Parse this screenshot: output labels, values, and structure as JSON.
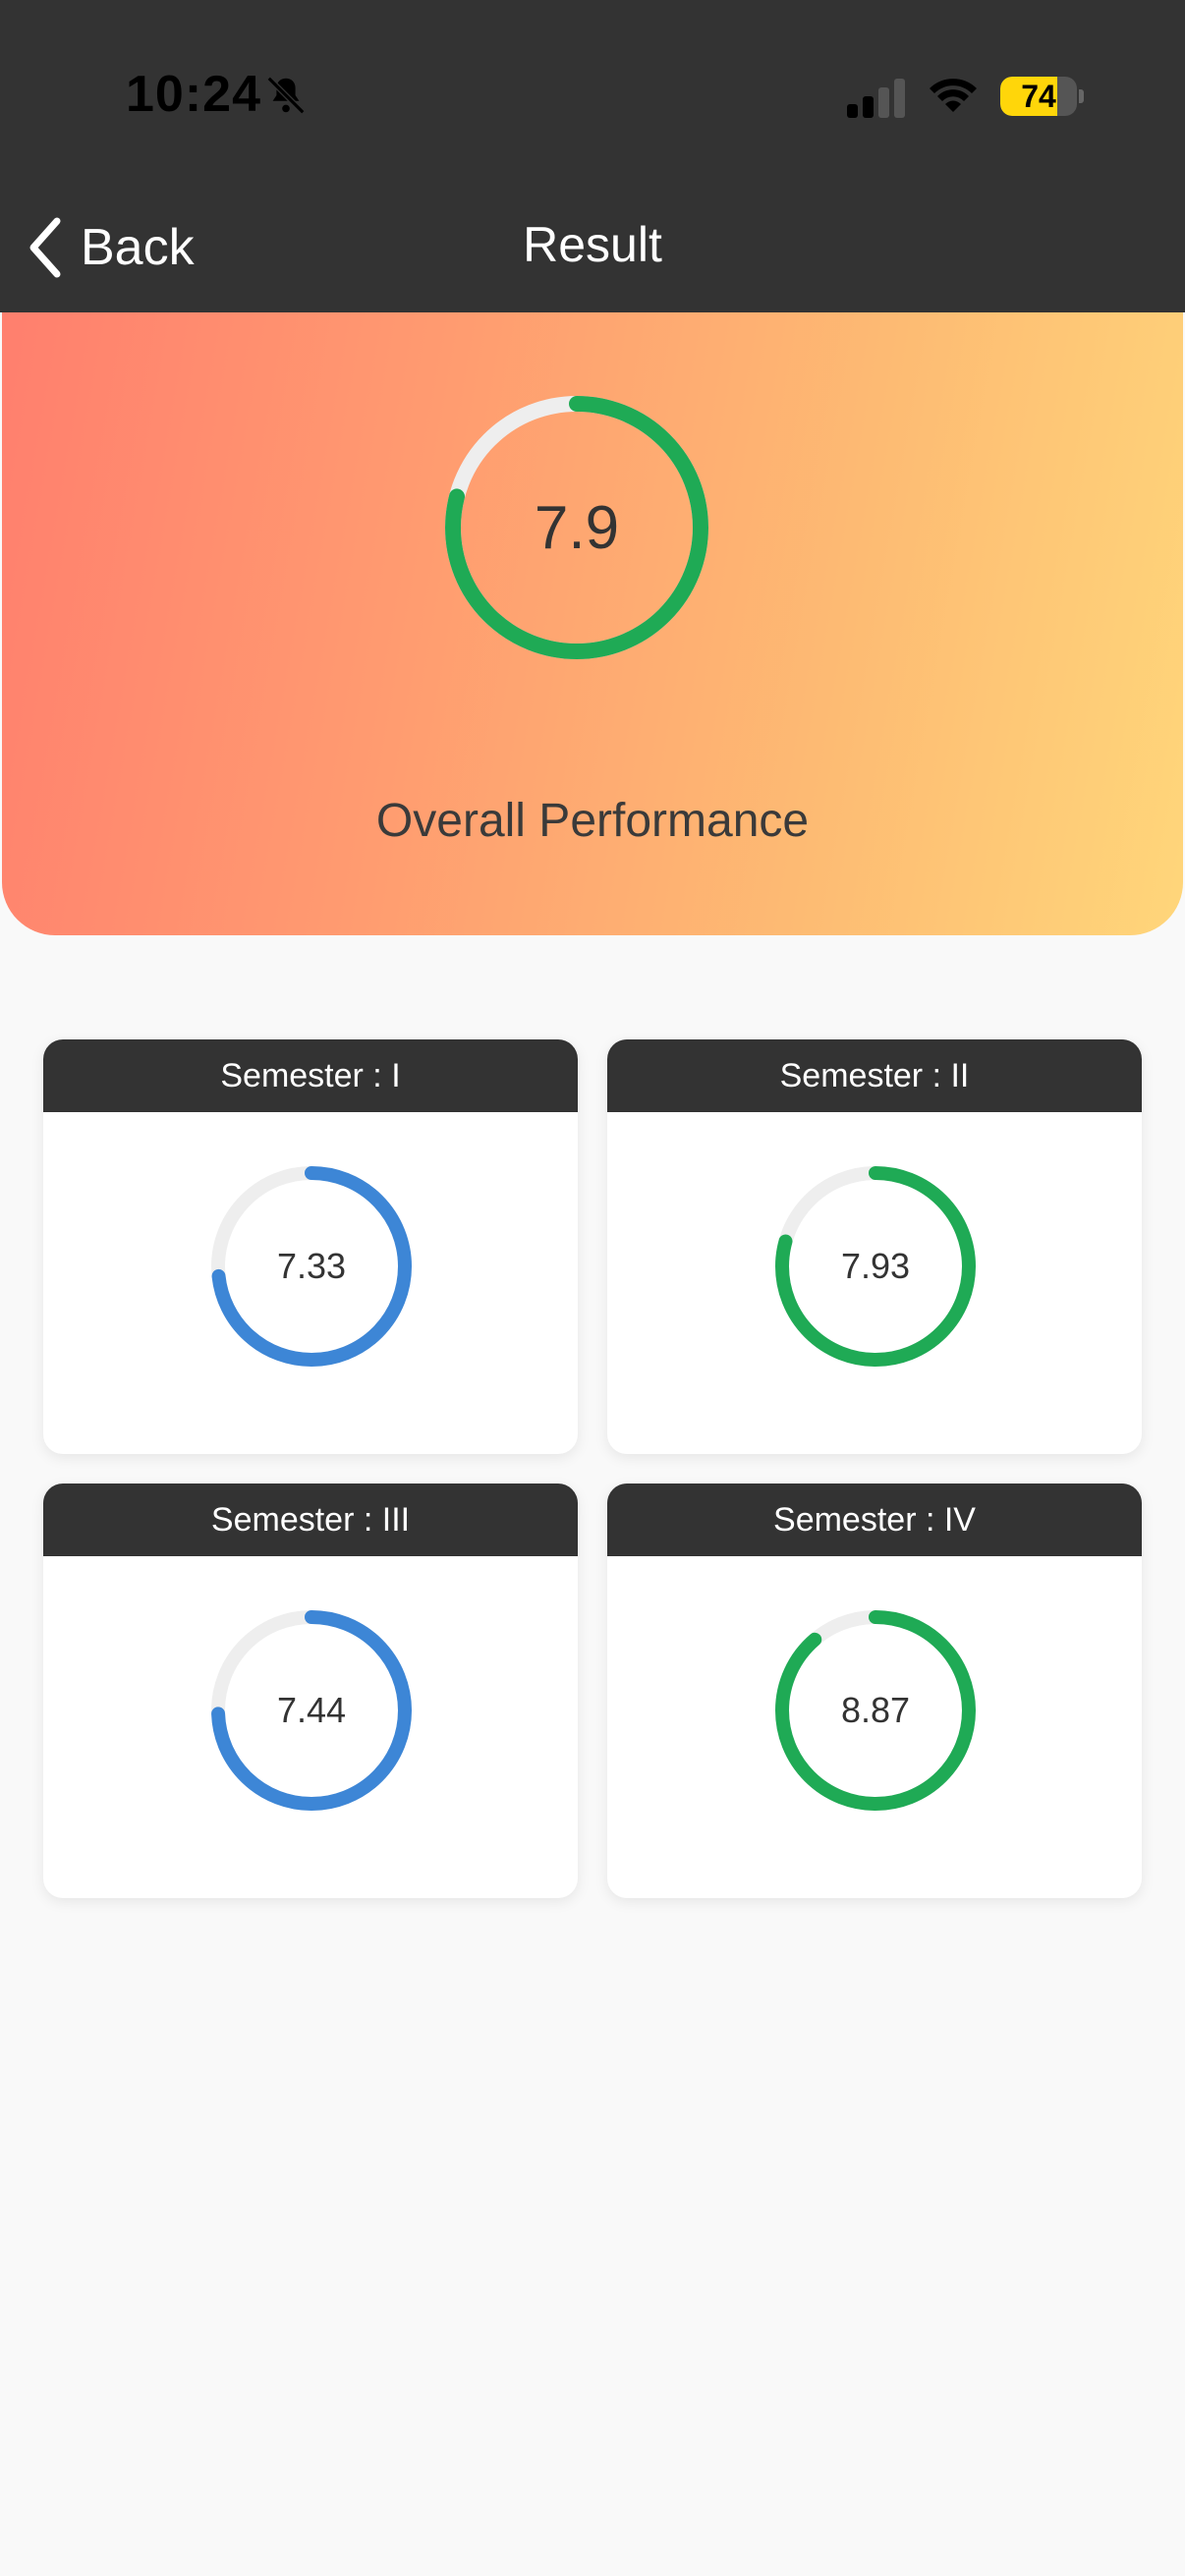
{
  "status_bar": {
    "time": "10:24",
    "battery_level": "74",
    "battery_fraction": 0.74
  },
  "nav": {
    "back_label": "Back",
    "title": "Result"
  },
  "overall": {
    "value": "7.9",
    "fraction": 0.79,
    "label": "Overall Performance",
    "ring_color": "#1faa55",
    "track_color": "#eeeeee"
  },
  "semesters": [
    {
      "title": "Semester : I",
      "value": "7.33",
      "fraction": 0.733,
      "color": "#3d86d6"
    },
    {
      "title": "Semester : II",
      "value": "7.93",
      "fraction": 0.793,
      "color": "#1faa55"
    },
    {
      "title": "Semester : III",
      "value": "7.44",
      "fraction": 0.744,
      "color": "#3d86d6"
    },
    {
      "title": "Semester : IV",
      "value": "8.87",
      "fraction": 0.887,
      "color": "#1faa55"
    }
  ]
}
